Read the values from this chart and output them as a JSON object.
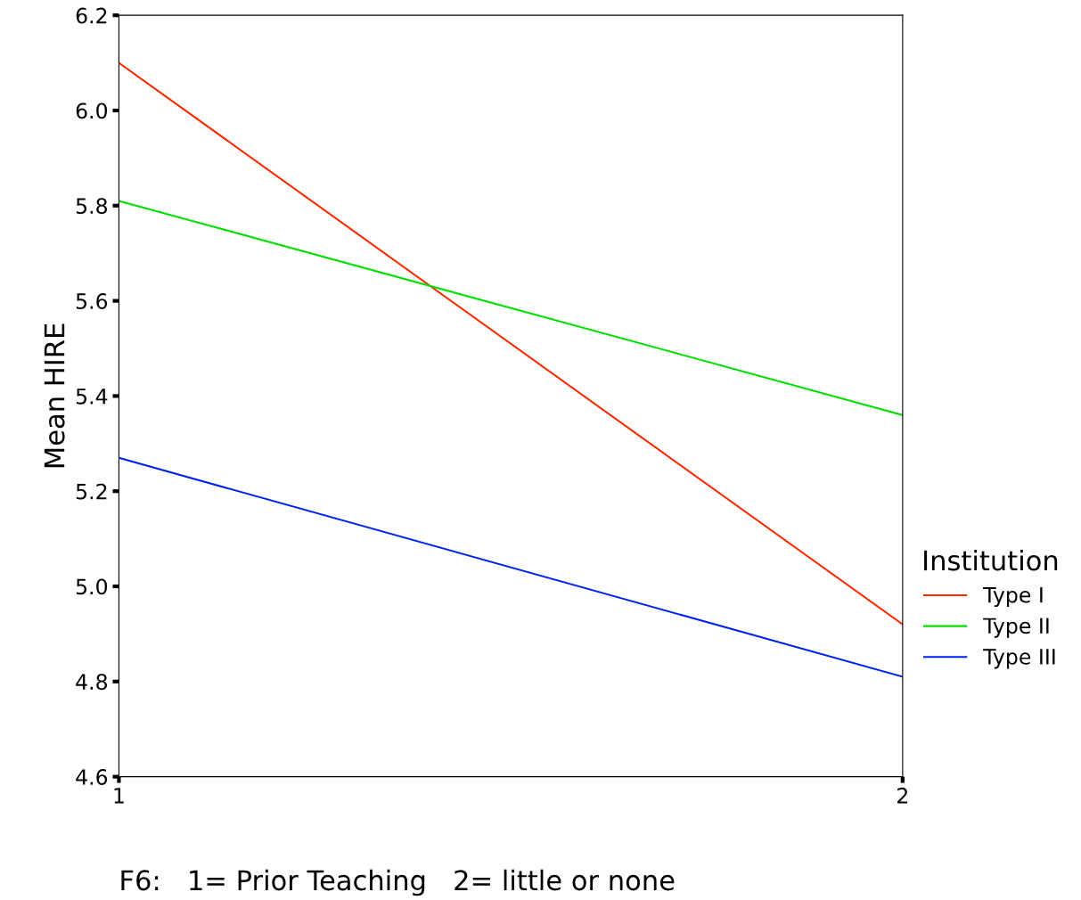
{
  "chart_data": {
    "type": "line",
    "xlabel": "F6:   1= Prior Teaching   2= little or none",
    "ylabel": "Mean HIRE",
    "legend_title": "Institution",
    "x": [
      1,
      2
    ],
    "xlim": [
      1,
      2
    ],
    "xticks": [
      1,
      2
    ],
    "ylim": [
      4.6,
      6.2
    ],
    "yticks": [
      4.6,
      4.8,
      {
        "value": 5,
        "label": "5.0"
      },
      5.2,
      5.4,
      5.6,
      5.8,
      {
        "value": 6,
        "label": "6.0"
      },
      6.2
    ],
    "series": [
      {
        "name": "Type I",
        "color": "#ff2a00",
        "values": [
          6.1,
          4.92
        ]
      },
      {
        "name": "Type II",
        "color": "#00e000",
        "values": [
          5.81,
          5.36
        ]
      },
      {
        "name": "Type III",
        "color": "#0022ee",
        "values": [
          5.27,
          4.81
        ]
      }
    ],
    "grid": false,
    "legend": "right",
    "marker": "none",
    "line_style": "solid"
  }
}
